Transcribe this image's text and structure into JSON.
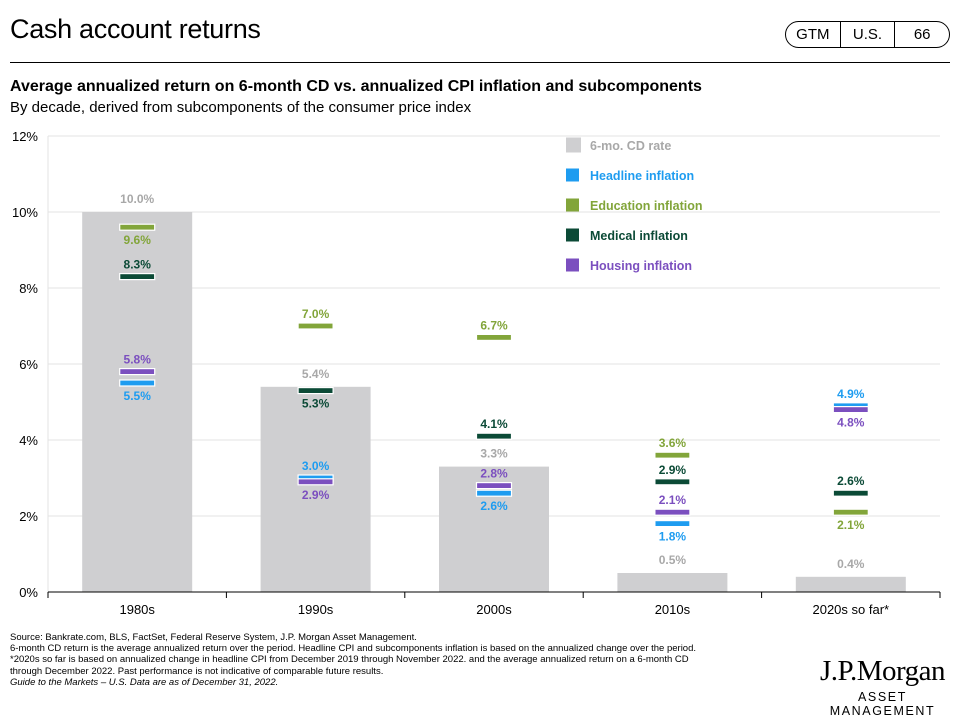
{
  "header": {
    "title": "Cash account returns",
    "badges": [
      "GTM",
      "U.S.",
      "66"
    ]
  },
  "chart_title": "Average annualized return on 6-month CD vs. annualized CPI inflation and subcomponents",
  "chart_subtitle": "By decade, derived from subcomponents of the consumer price index",
  "chart_data": {
    "type": "bar",
    "categories": [
      "1980s",
      "1990s",
      "2000s",
      "2010s",
      "2020s so far*"
    ],
    "ylim": [
      0,
      12
    ],
    "yticks": [
      "0%",
      "2%",
      "4%",
      "6%",
      "8%",
      "10%",
      "12%"
    ],
    "legend_position": "top-right",
    "series": [
      {
        "name": "6-mo. CD rate",
        "kind": "bar",
        "color": "#cfcfd1",
        "label_color": "#a8a8a8",
        "values": [
          10.0,
          5.4,
          3.3,
          0.5,
          0.4
        ],
        "labels": [
          "10.0%",
          "5.4%",
          "3.3%",
          "0.5%",
          "0.4%"
        ]
      },
      {
        "name": "Headline inflation",
        "kind": "marker",
        "color": "#1e9cf0",
        "values": [
          5.5,
          3.0,
          2.6,
          1.8,
          4.9
        ],
        "labels": [
          "5.5%",
          "3.0%",
          "2.6%",
          "1.8%",
          "4.9%"
        ],
        "label_side": [
          "below",
          "above",
          "below",
          "below",
          "above"
        ]
      },
      {
        "name": "Education inflation",
        "kind": "marker",
        "color": "#82a53a",
        "values": [
          9.6,
          7.0,
          6.7,
          3.6,
          2.1
        ],
        "labels": [
          "9.6%",
          "7.0%",
          "6.7%",
          "3.6%",
          "2.1%"
        ],
        "label_side": [
          "below",
          "above",
          "above",
          "above",
          "below"
        ]
      },
      {
        "name": "Medical inflation",
        "kind": "marker",
        "color": "#0b4a36",
        "values": [
          8.3,
          5.3,
          4.1,
          2.9,
          2.6
        ],
        "labels": [
          "8.3%",
          "5.3%",
          "4.1%",
          "2.9%",
          "2.6%"
        ],
        "label_side": [
          "above",
          "below",
          "above",
          "above",
          "above"
        ]
      },
      {
        "name": "Housing inflation",
        "kind": "marker",
        "color": "#7b4fbf",
        "values": [
          5.8,
          2.9,
          2.8,
          2.1,
          4.8
        ],
        "labels": [
          "5.8%",
          "2.9%",
          "2.8%",
          "2.1%",
          "4.8%"
        ],
        "label_side": [
          "above",
          "below",
          "above",
          "above",
          "below"
        ]
      }
    ]
  },
  "footnotes": [
    "Source: Bankrate.com, BLS, FactSet, Federal Reserve System, J.P. Morgan Asset Management.",
    "6-month CD return is the average annualized return over the period. Headline CPI and subcomponents inflation is based on the annualized change over the period.",
    "*2020s so far is based on annualized change in headline CPI from December 2019 through November 2022. and the average annualized return on a 6-month CD",
    "through December 2022. Past performance is not indicative of comparable future results.",
    "Guide to the Markets – U.S. Data are as of December 31, 2022."
  ],
  "logo": {
    "wordmark": "J.P.Morgan",
    "sub": "ASSET MANAGEMENT"
  }
}
